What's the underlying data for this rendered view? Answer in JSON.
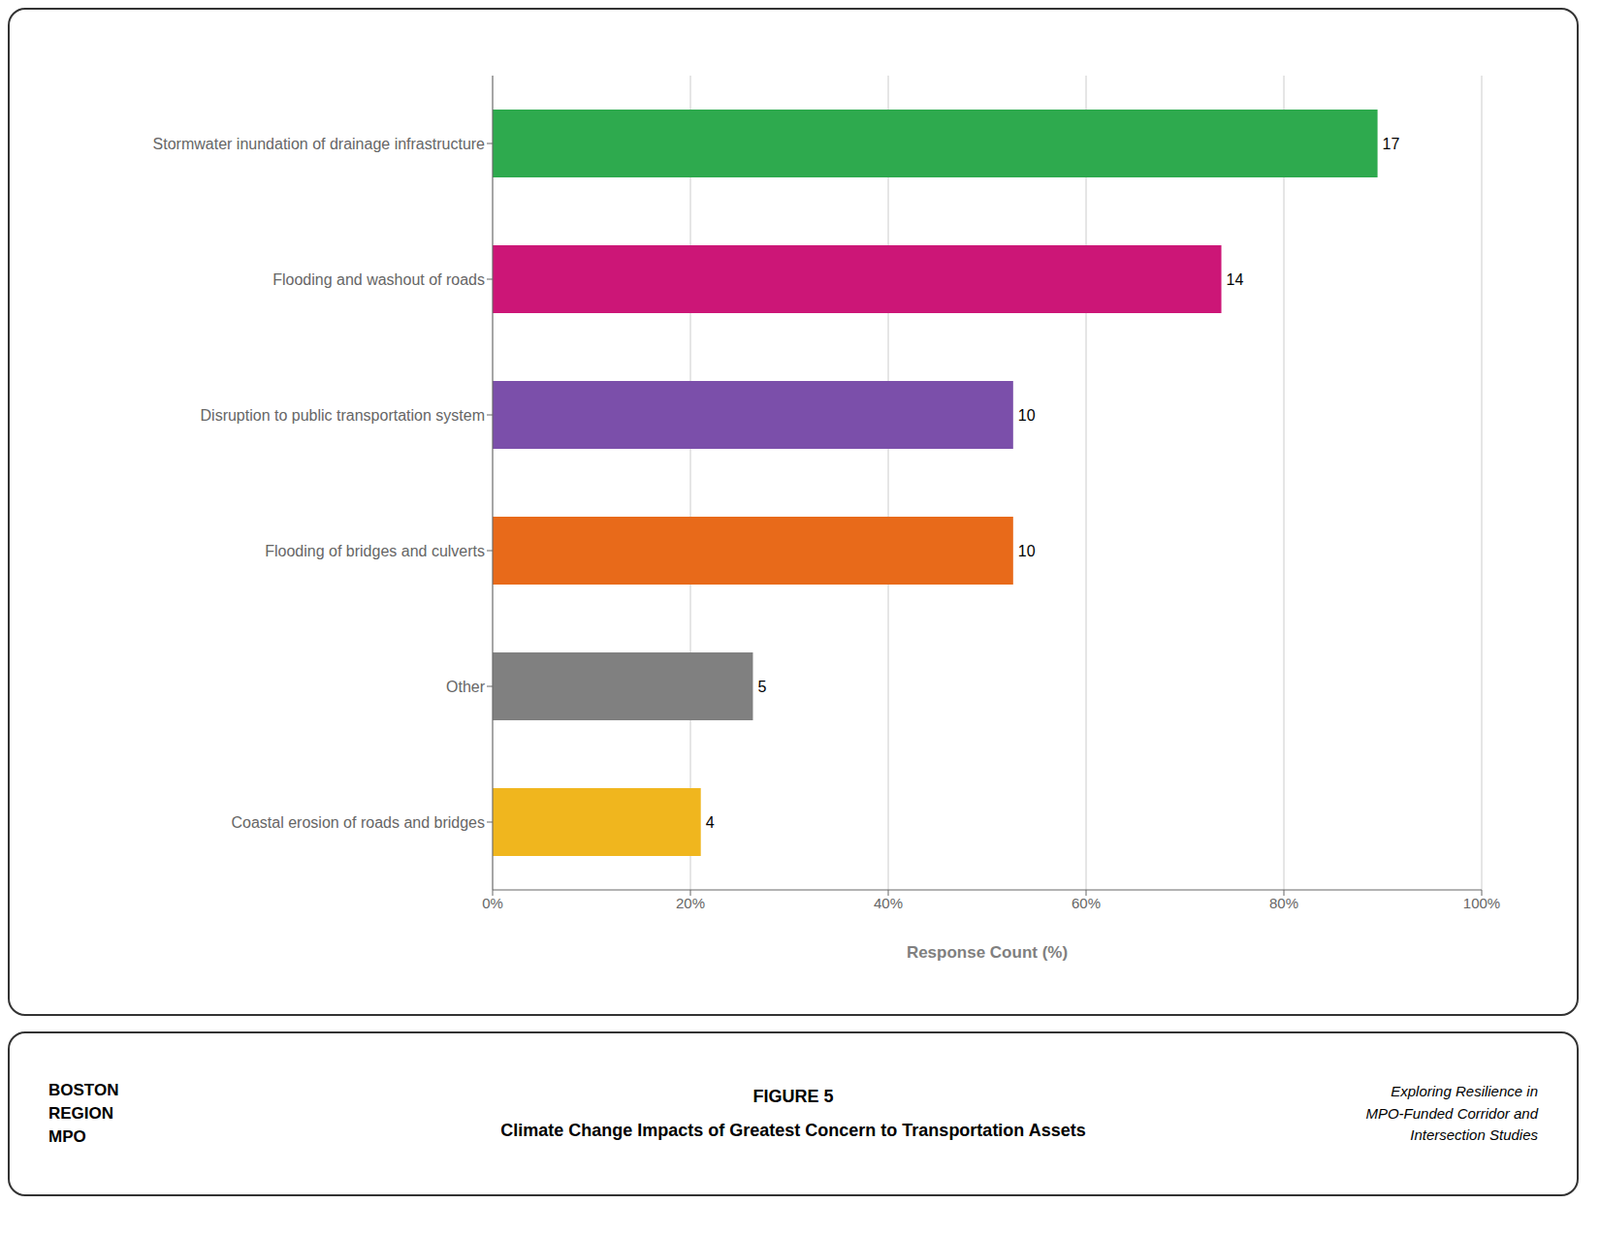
{
  "chart_data": {
    "type": "bar",
    "orientation": "horizontal",
    "title": "Climate Change Impacts of Greatest Concern to Transportation Assets",
    "annotations": [
      "FIGURE 5",
      "BOSTON\nREGION\nMPO",
      "Exploring Resilience in\nMPO-Funded Corridor and\nIntersection Studies"
    ],
    "x_label": "Response Count (%)",
    "categories": [
      "Stormwater inundation of drainage infrastructure",
      "Flooding and washout of roads",
      "Disruption to public transportation system",
      "Flooding of bridges and culverts",
      "Other",
      "Coastal erosion of roads and bridges"
    ],
    "values": [
      89.47,
      73.68,
      52.63,
      52.63,
      26.32,
      21.05
    ],
    "counts": [
      17,
      14,
      10,
      10,
      5,
      4
    ],
    "colors": [
      "#2eaa4e",
      "#cc1677",
      "#7b4faa",
      "#e86a1a",
      "#808080",
      "#f0b61e"
    ],
    "xlim": [
      0,
      100
    ],
    "xticks": [
      {
        "value": 0,
        "label": "0%"
      },
      {
        "value": 20,
        "label": "20%"
      },
      {
        "value": 40,
        "label": "40%"
      },
      {
        "value": 60,
        "label": "60%"
      },
      {
        "value": 80,
        "label": "80%"
      },
      {
        "value": 100,
        "label": "100%"
      }
    ],
    "grid": true
  }
}
